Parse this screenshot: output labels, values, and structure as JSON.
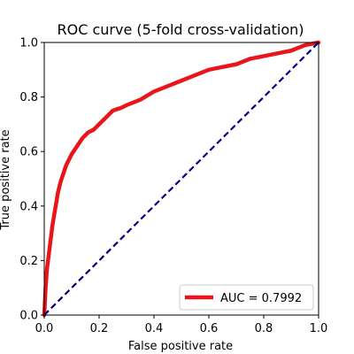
{
  "chart_data": {
    "type": "line",
    "title": "ROC curve (5-fold cross-validation)",
    "xlabel": "False positive rate",
    "ylabel": "True positive rate",
    "xlim": [
      0.0,
      1.0
    ],
    "ylim": [
      0.0,
      1.0
    ],
    "x_ticks": [
      "0.0",
      "0.2",
      "0.4",
      "0.6",
      "0.8",
      "1.0"
    ],
    "y_ticks": [
      "0.0",
      "0.2",
      "0.4",
      "0.6",
      "0.8",
      "1.0"
    ],
    "grid": false,
    "legend_position": "lower right",
    "series": [
      {
        "name": "AUC = 0.7992",
        "color": "#e8161b",
        "style": "solid",
        "x": [
          0.0,
          0.005,
          0.01,
          0.02,
          0.03,
          0.04,
          0.05,
          0.06,
          0.08,
          0.1,
          0.12,
          0.14,
          0.16,
          0.18,
          0.2,
          0.22,
          0.25,
          0.28,
          0.3,
          0.35,
          0.4,
          0.45,
          0.5,
          0.55,
          0.6,
          0.65,
          0.7,
          0.75,
          0.8,
          0.85,
          0.9,
          0.95,
          1.0
        ],
        "y": [
          0.0,
          0.1,
          0.17,
          0.25,
          0.33,
          0.39,
          0.45,
          0.49,
          0.55,
          0.59,
          0.62,
          0.65,
          0.67,
          0.68,
          0.7,
          0.72,
          0.75,
          0.76,
          0.77,
          0.79,
          0.82,
          0.84,
          0.86,
          0.88,
          0.9,
          0.91,
          0.92,
          0.94,
          0.95,
          0.96,
          0.97,
          0.99,
          1.0
        ]
      },
      {
        "name": "",
        "color": "#000080",
        "style": "dashed",
        "x": [
          0.0,
          1.0
        ],
        "y": [
          0.0,
          1.0
        ]
      }
    ]
  }
}
